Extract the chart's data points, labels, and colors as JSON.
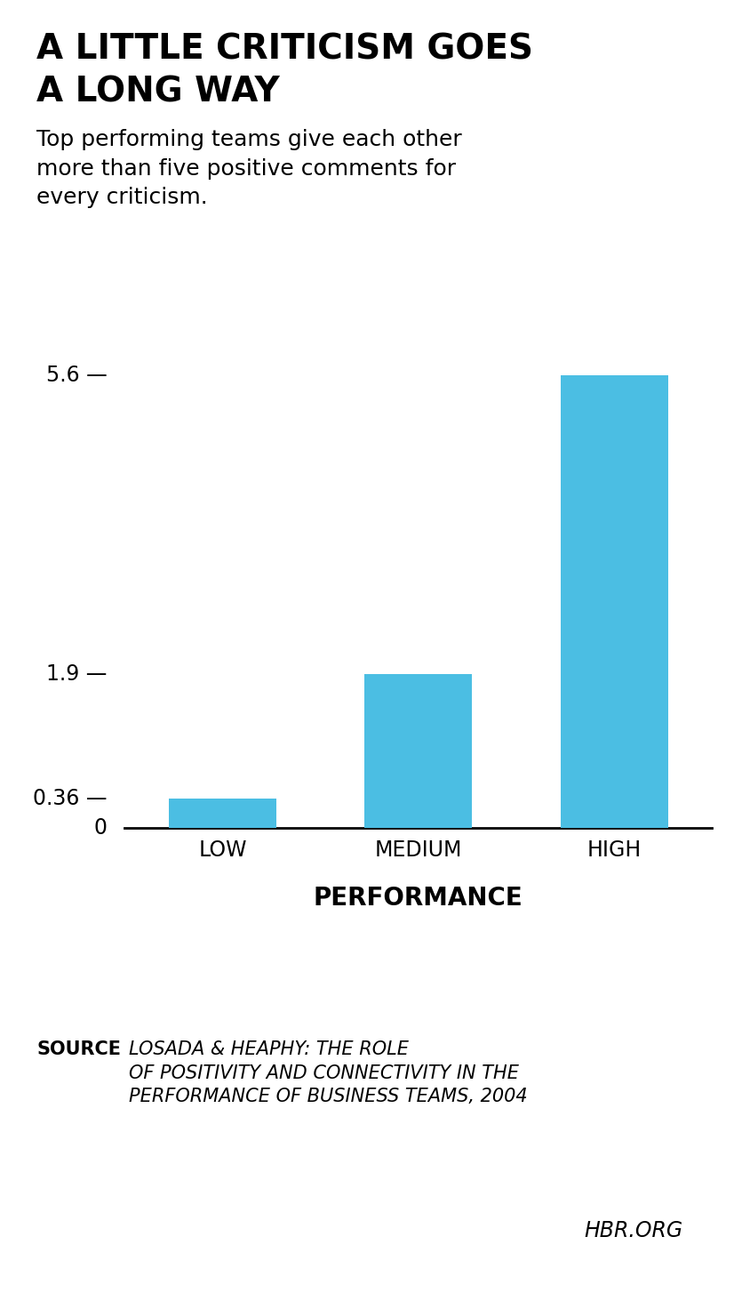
{
  "title_line1": "A LITTLE CRITICISM GOES",
  "title_line2": "A LONG WAY",
  "subtitle": "Top performing teams give each other\nmore than five positive comments for\nevery criticism.",
  "categories": [
    "LOW",
    "MEDIUM",
    "HIGH"
  ],
  "values": [
    0.36,
    1.9,
    5.6
  ],
  "bar_color": "#4BBEE3",
  "ytick_labels": [
    "0",
    "0.36",
    "1.9",
    "5.6"
  ],
  "ytick_values": [
    0,
    0.36,
    1.9,
    5.6
  ],
  "xlabel": "PERFORMANCE",
  "source_bold": "SOURCE",
  "source_italic": "LOSADA & HEAPHY: THE ROLE\nOF POSITIVITY AND CONNECTIVITY IN THE\nPERFORMANCE OF BUSINESS TEAMS",
  "source_year": ", 2004",
  "hbr": "HBR.ORG",
  "background_color": "#FFFFFF",
  "ylim": [
    0,
    6.4
  ]
}
